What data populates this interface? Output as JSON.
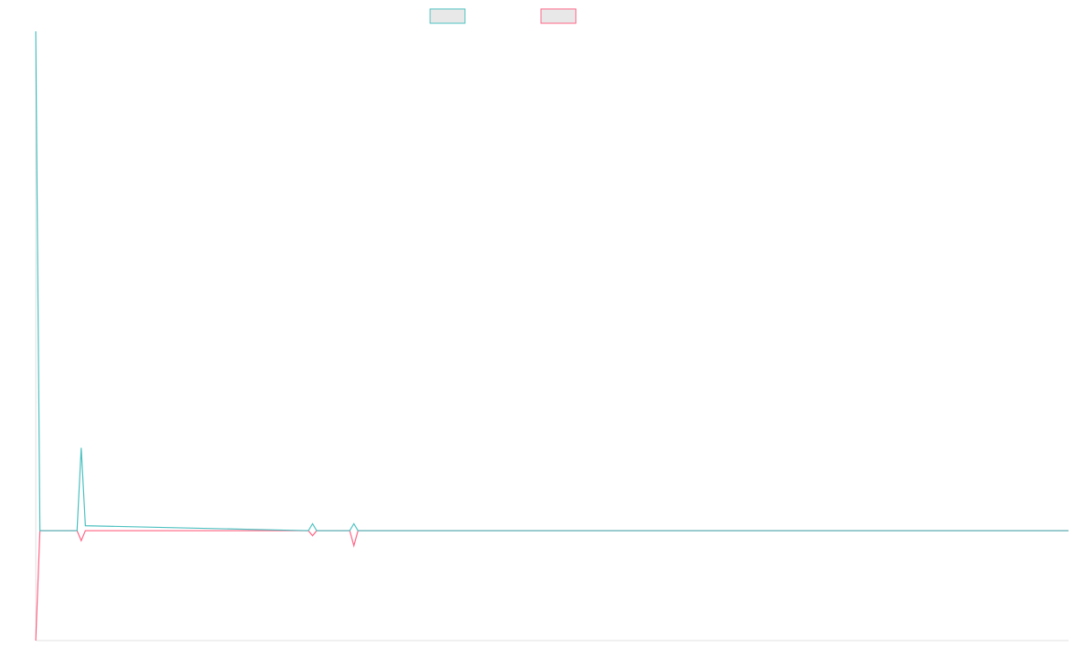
{
  "chart_data": {
    "type": "line",
    "x": [
      0,
      1,
      10,
      11,
      12,
      66,
      67,
      68,
      76,
      77,
      78,
      250
    ],
    "xlim": [
      0,
      250
    ],
    "ylim": [
      -1.1,
      5
    ],
    "series": [
      {
        "color": "#ff6384",
        "values": [
          -1.1,
          0,
          0,
          -0.1,
          0,
          0,
          -0.05,
          0,
          0,
          -0.15,
          0,
          0
        ]
      },
      {
        "color": "#4bc0c0",
        "values": [
          5,
          0,
          0,
          0.83,
          0.05,
          0,
          0.07,
          0,
          0,
          0.07,
          0,
          0
        ]
      }
    ]
  }
}
